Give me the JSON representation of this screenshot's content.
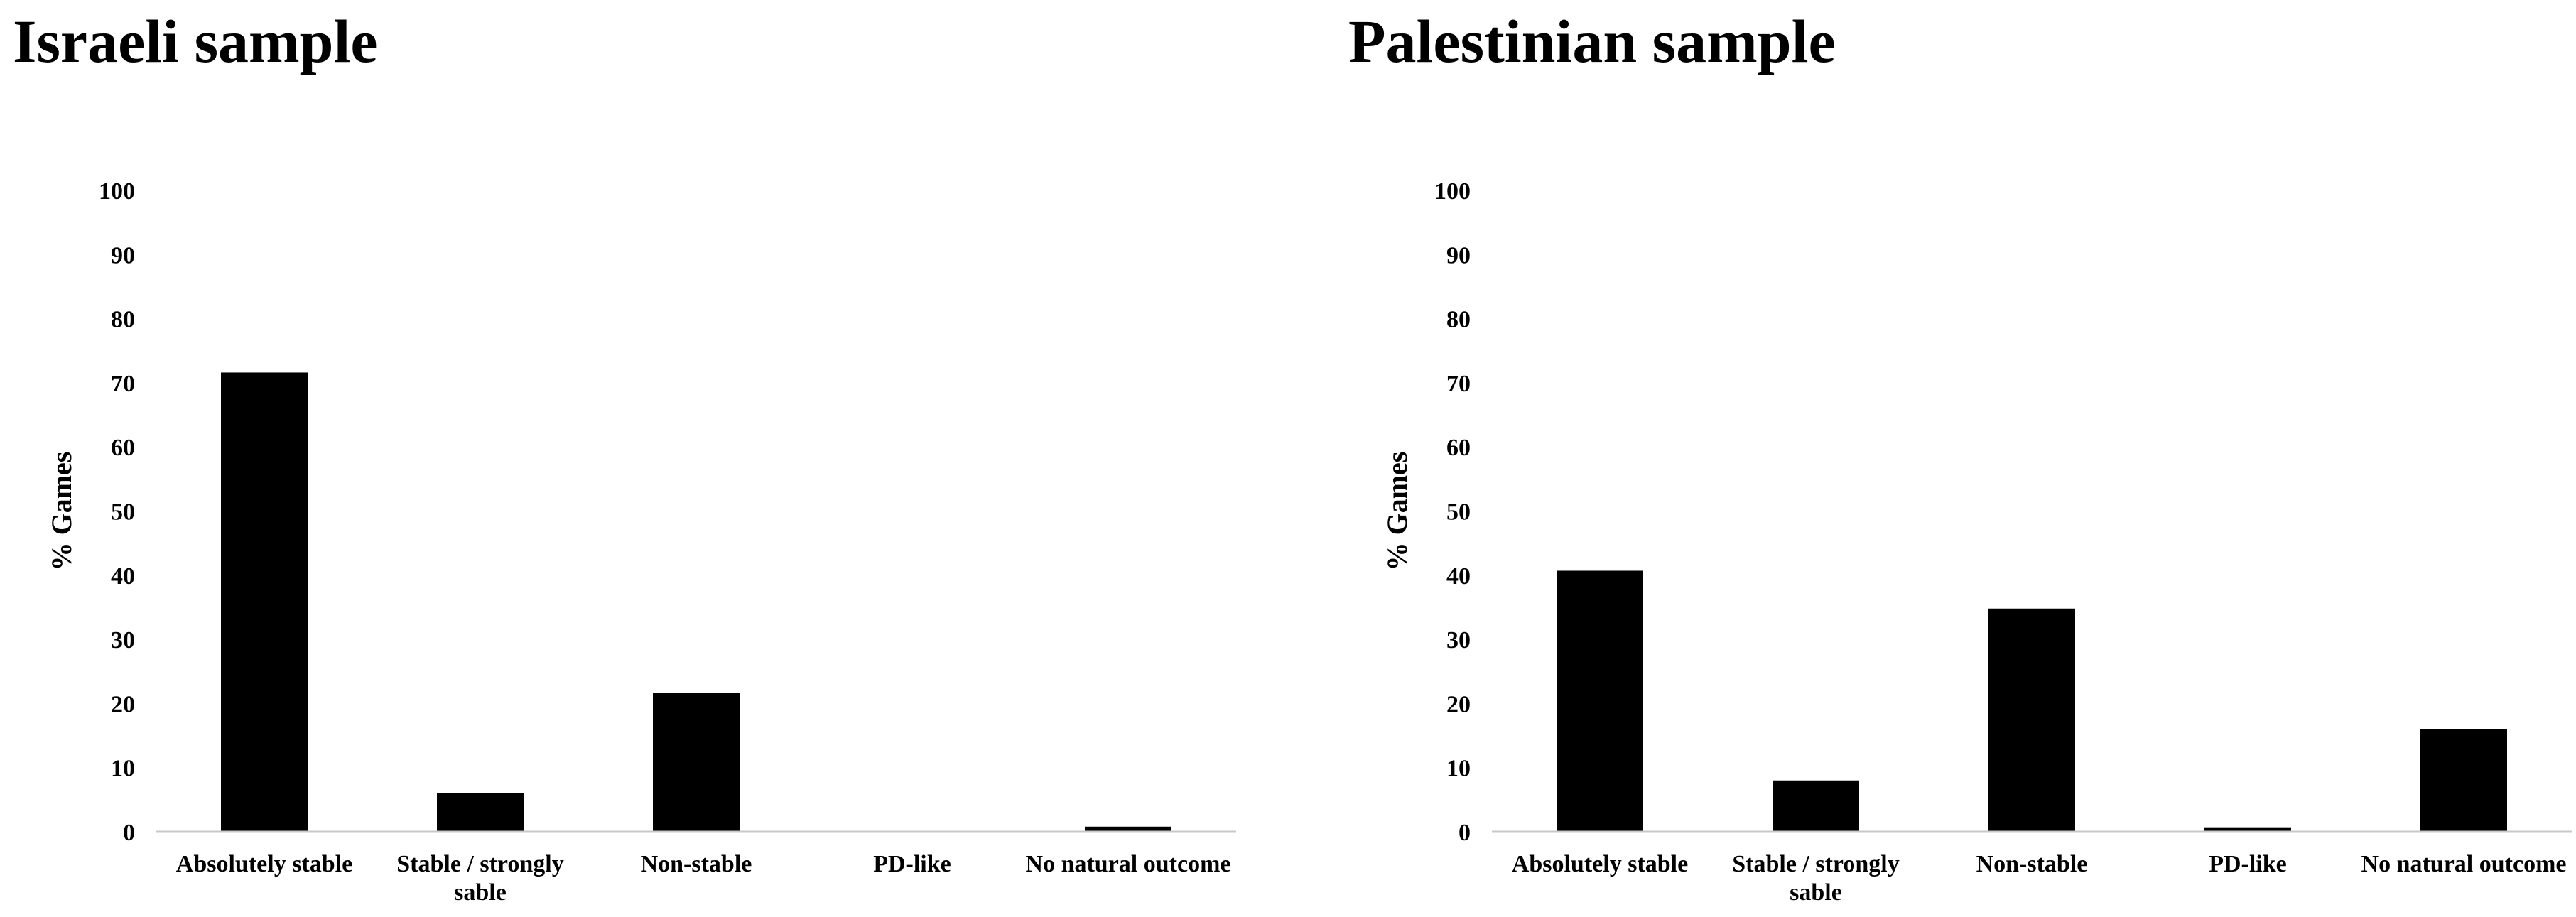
{
  "chart_data": [
    {
      "type": "bar",
      "title": "Israeli sample",
      "ylabel": "% Games",
      "xlabel": "",
      "ylim": [
        0,
        100
      ],
      "yticks": [
        0,
        10,
        20,
        30,
        40,
        50,
        60,
        70,
        80,
        90,
        100
      ],
      "categories": [
        "Absolutely stable",
        "Stable / strongly sable",
        "Non-stable",
        "PD-like",
        "No natural outcome"
      ],
      "values": [
        71.6,
        6,
        21.6,
        0,
        0.8
      ],
      "grid": false,
      "bar_color": "#000000"
    },
    {
      "type": "bar",
      "title": "Palestinian sample",
      "ylabel": "% Games",
      "xlabel": "",
      "ylim": [
        0,
        100
      ],
      "yticks": [
        0,
        10,
        20,
        30,
        40,
        50,
        60,
        70,
        80,
        90,
        100
      ],
      "categories": [
        "Absolutely stable",
        "Stable / strongly sable",
        "Non-stable",
        "PD-like",
        "No natural outcome"
      ],
      "values": [
        40.7,
        8,
        34.8,
        0.7,
        16
      ],
      "grid": false,
      "bar_color": "#000000"
    }
  ]
}
